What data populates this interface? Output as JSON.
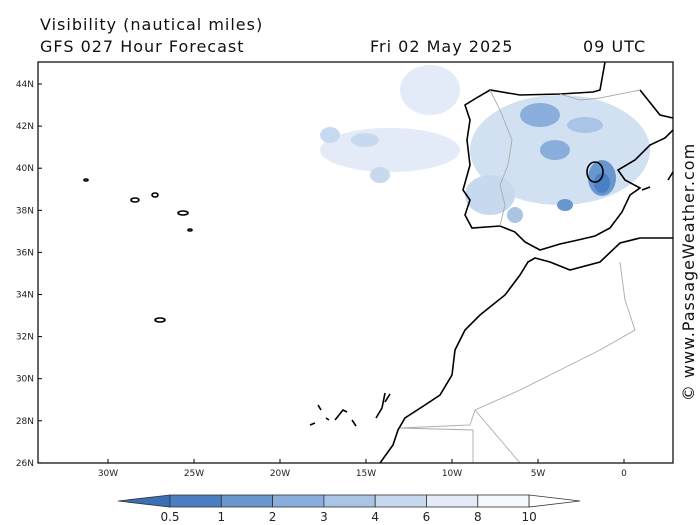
{
  "title": "Visibility (nautical miles)",
  "subtitle": "GFS 027 Hour Forecast",
  "date": "Fri 02 May 2025",
  "time": "09 UTC",
  "watermark": "© www.PassageWeather.com",
  "lat_labels": [
    "44N",
    "42N",
    "40N",
    "38N",
    "36N",
    "34N",
    "32N",
    "30N",
    "28N",
    "26N"
  ],
  "lon_labels": [
    "30W",
    "25W",
    "20W",
    "15W",
    "10W",
    "5W",
    "0"
  ],
  "colorbar": {
    "labels": [
      "0.5",
      "1",
      "2",
      "3",
      "4",
      "6",
      "8",
      "10"
    ]
  }
}
